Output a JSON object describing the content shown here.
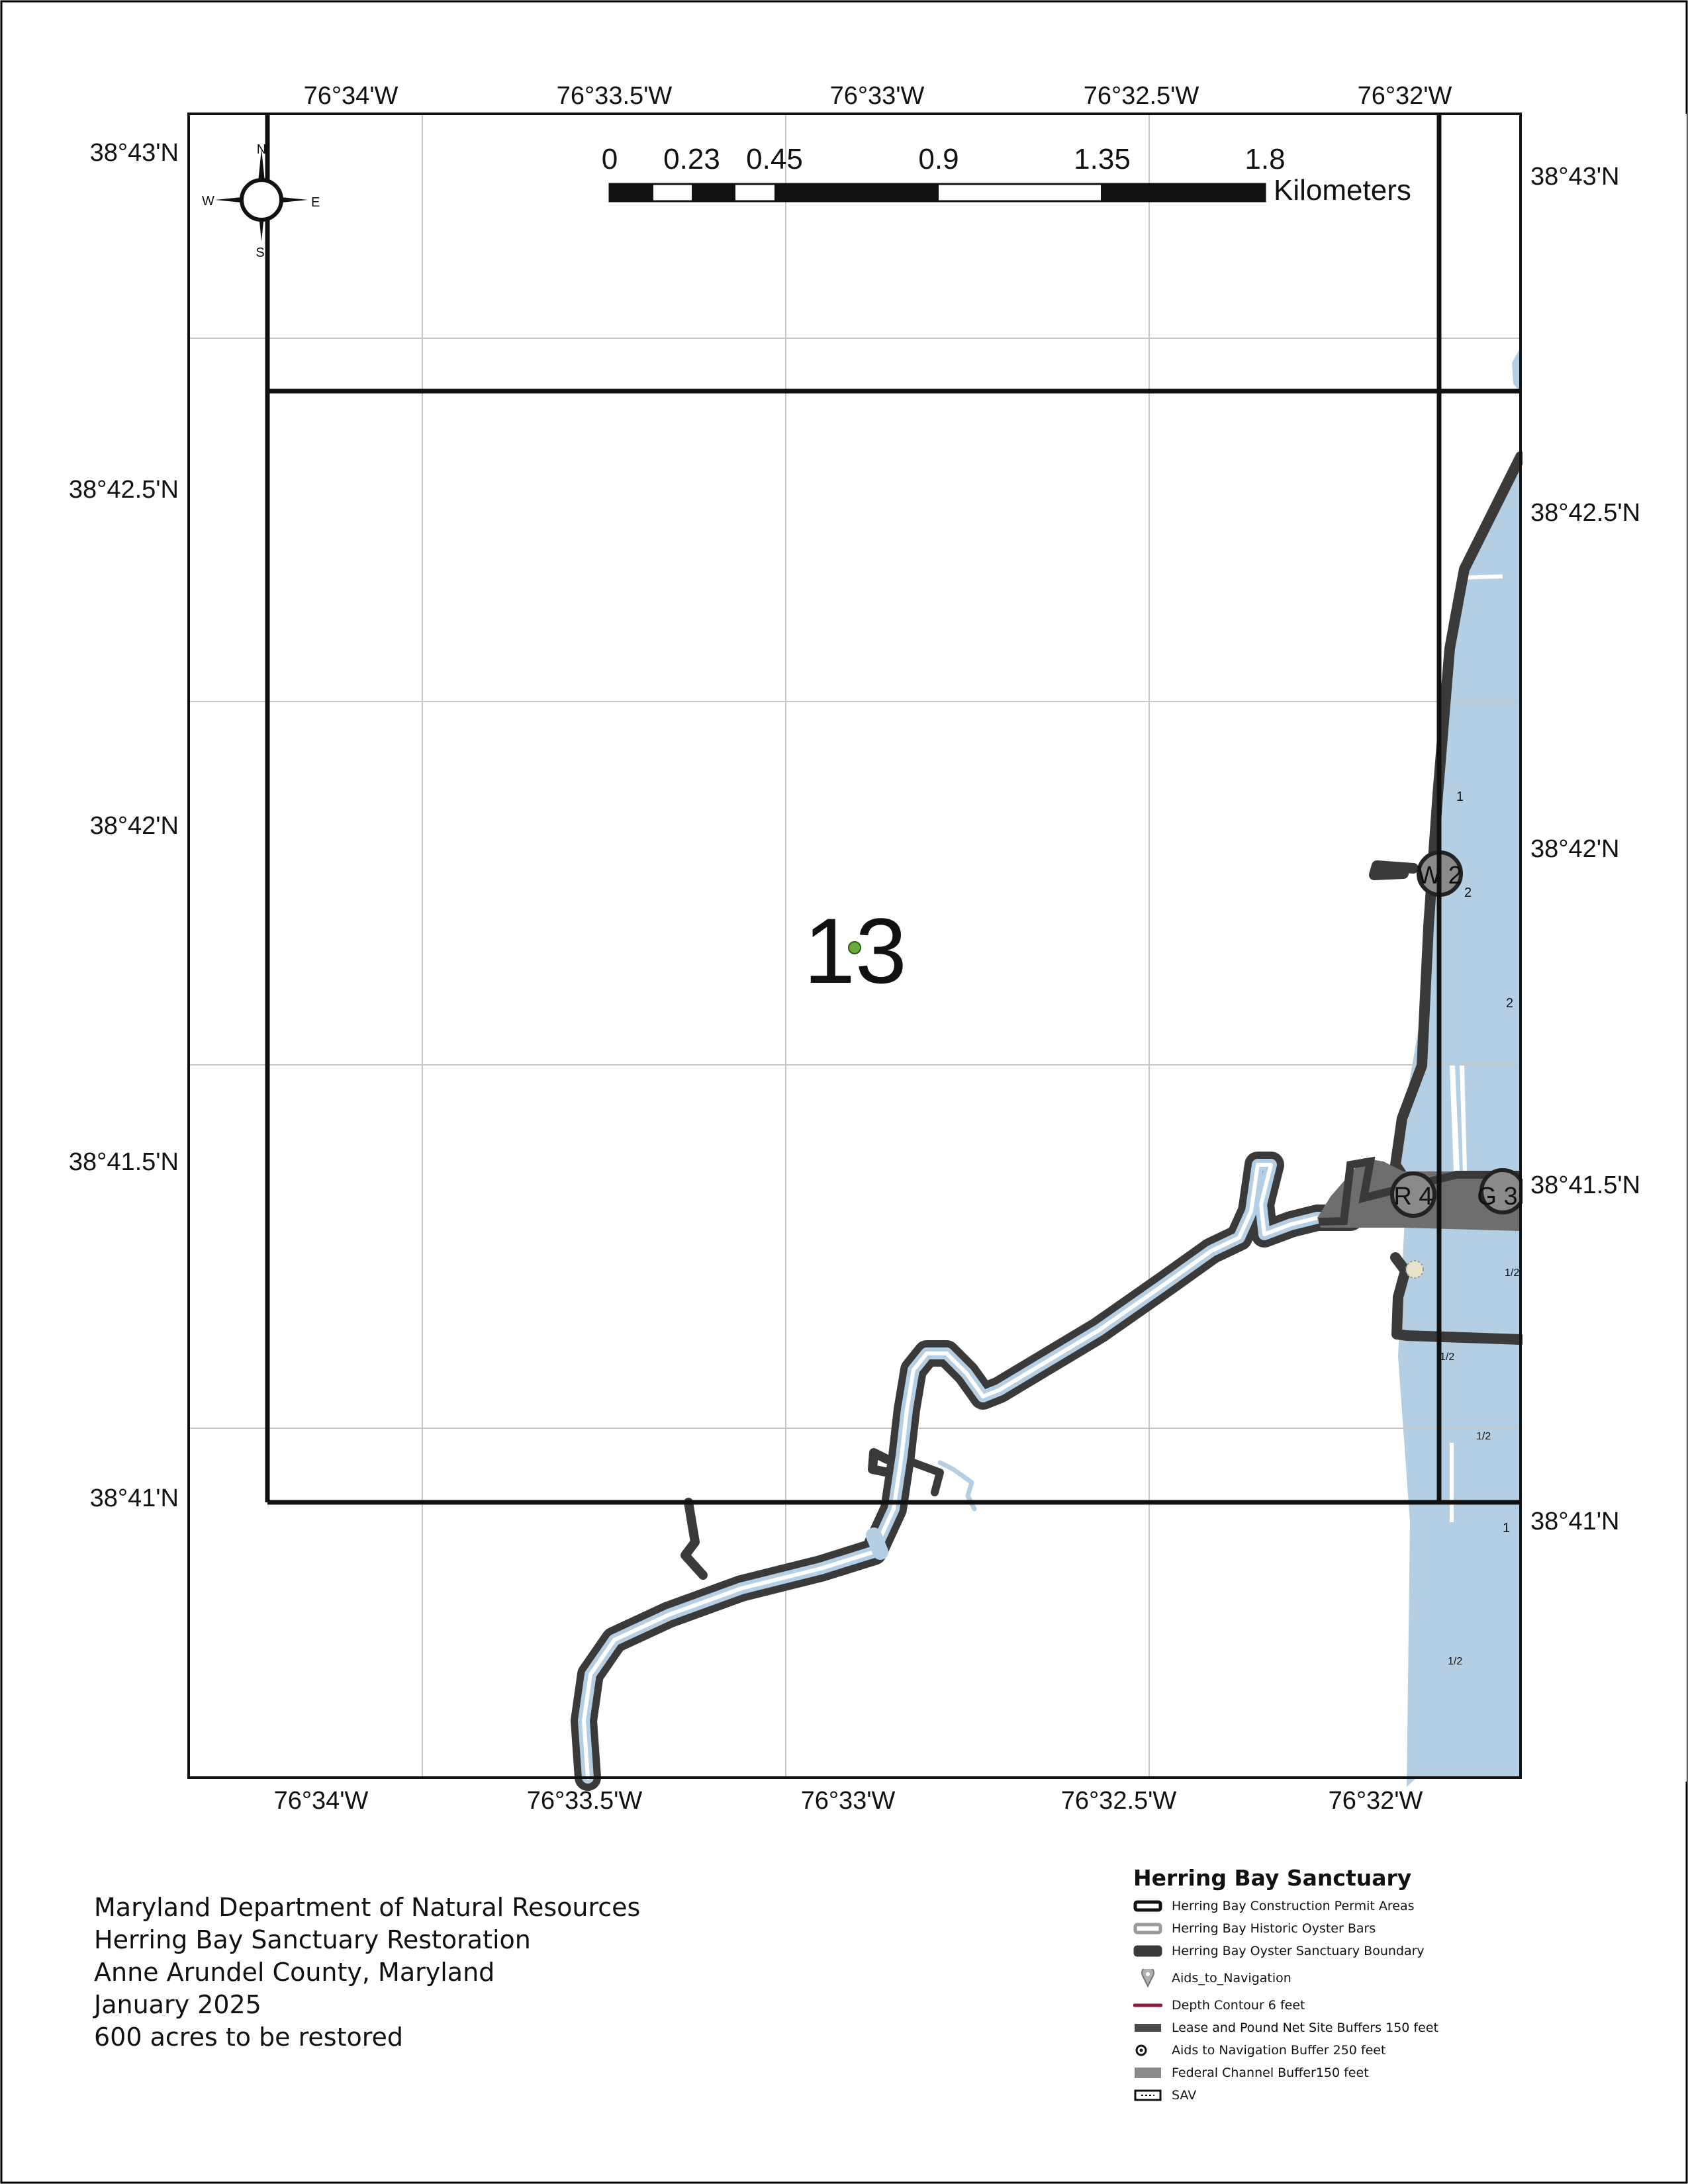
{
  "lon_labels": [
    "76°34'W",
    "76°33.5'W",
    "76°33'W",
    "76°32.5'W",
    "76°32'W"
  ],
  "lat_labels": [
    "38°43'N",
    "38°42.5'N",
    "38°42'N",
    "38°41.5'N",
    "38°41'N"
  ],
  "compass": {
    "n": "N",
    "s": "S",
    "e": "E",
    "w": "W"
  },
  "scale_bar": {
    "ticks": [
      "0",
      "0.23",
      "0.45",
      "0.9",
      "1.35",
      "1.8"
    ],
    "unit": "Kilometers"
  },
  "area_number": "13",
  "nav_aids": [
    "W 2",
    "R 4",
    "G 3"
  ],
  "depth_labels": [
    "1",
    "2",
    "2",
    "1/2",
    "1/2",
    "1/2",
    "1",
    "1/2"
  ],
  "footer": {
    "line1": "Maryland Department of Natural Resources",
    "line2": "Herring Bay Sanctuary Restoration",
    "line3": "Anne Arundel County, Maryland",
    "line4": "January 2025",
    "line5": "600 acres to be restored"
  },
  "legend": {
    "title": "Herring Bay Sanctuary",
    "items": [
      {
        "label": "Herring Bay Construction Permit Areas",
        "symbol": "construction-permit-area-swatch"
      },
      {
        "label": "Herring Bay Historic Oyster Bars",
        "symbol": "historic-oyster-bar-swatch"
      },
      {
        "label": "Herring Bay Oyster Sanctuary Boundary",
        "symbol": "sanctuary-boundary-swatch"
      },
      {
        "label": "Aids_to_Navigation",
        "symbol": "nav-aid-marker-icon"
      },
      {
        "label": "Depth Contour 6 feet",
        "symbol": "depth-contour-line"
      },
      {
        "label": "Lease and Pound Net Site Buffers 150 feet",
        "symbol": "lease-buffer-swatch"
      },
      {
        "label": "Aids to Navigation Buffer 250 feet",
        "symbol": "nav-buffer-circle-icon"
      },
      {
        "label": "Federal Channel Buffer150 feet",
        "symbol": "federal-channel-swatch"
      },
      {
        "label": "SAV",
        "symbol": "sav-swatch"
      }
    ]
  },
  "colors": {
    "water": "#b4cfe3",
    "boundary": "#3a3a3a",
    "channel_buffer": "#6e6e6e",
    "depth_contour": "#8b1a3a",
    "sav_fill": "#e8e2c8"
  }
}
